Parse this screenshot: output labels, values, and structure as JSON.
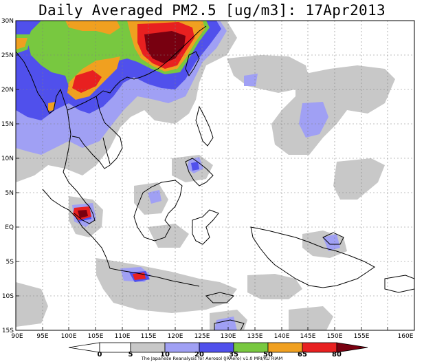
{
  "title": "Daily Averaged PM2.5 [ug/m3]: 17Apr2013",
  "lat_labels": [
    "30N",
    "25N",
    "20N",
    "15N",
    "10N",
    "5N",
    "EQ",
    "5S",
    "10S",
    "15S"
  ],
  "lon_labels": [
    "90E",
    "95E",
    "100E",
    "105E",
    "110E",
    "115E",
    "120E",
    "125E",
    "130E",
    "135E",
    "140E",
    "145E",
    "150E",
    "155E",
    "160E"
  ],
  "colorbar": {
    "tick_labels": [
      "0",
      "5",
      "10",
      "20",
      "35",
      "50",
      "65",
      "80"
    ],
    "colors": [
      "#ffffff",
      "#ffffff",
      "#c8c8c8",
      "#a0a0f4",
      "#5050ec",
      "#78c840",
      "#f0a020",
      "#e82020",
      "#780010"
    ]
  },
  "credit": "The Japanese Reanalysis for Aerosol (JRAero) v1.0 MRI/KU RIAM"
}
